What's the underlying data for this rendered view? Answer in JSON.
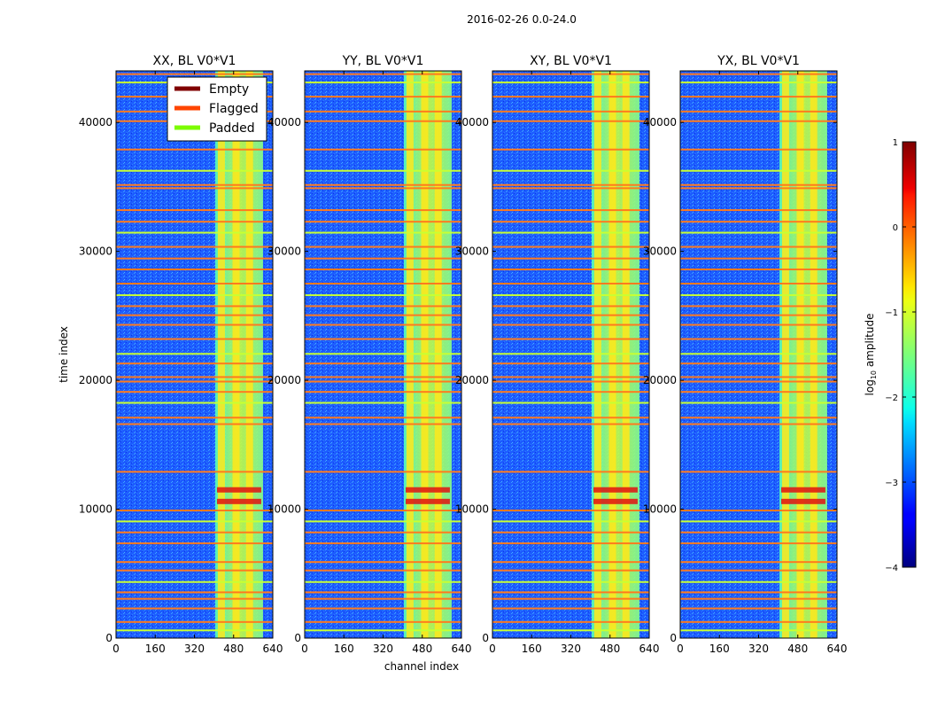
{
  "chart_data": {
    "type": "heatmap",
    "suptitle": "2016-02-26 0.0-24.0",
    "xlabel": "channel index",
    "ylabel": "time index",
    "xlim": [
      0,
      640
    ],
    "ylim": [
      0,
      44000
    ],
    "xticks": [
      0,
      160,
      320,
      480,
      640
    ],
    "yticks": [
      0,
      10000,
      20000,
      30000,
      40000
    ],
    "panels": [
      {
        "title": "XX, BL V0*V1"
      },
      {
        "title": "YY, BL V0*V1"
      },
      {
        "title": "XY, BL V0*V1"
      },
      {
        "title": "YX, BL V0*V1"
      }
    ],
    "active_band_channels": [
      405,
      600
    ],
    "bright_channel_columns": [
      430,
      490,
      545
    ],
    "legend": {
      "location": "upper-right of first panel",
      "entries": [
        {
          "label": "Empty",
          "color": "#800000"
        },
        {
          "label": "Flagged",
          "color": "#ff4500"
        },
        {
          "label": "Padded",
          "color": "#7cfc00"
        }
      ]
    },
    "colorbar": {
      "label": "log",
      "label_sub": "10",
      "label_suffix": " amplitude",
      "range": [
        -4,
        1
      ],
      "ticks": [
        1,
        0,
        -1,
        -2,
        -3,
        -4
      ],
      "tick_labels": [
        "1",
        "0",
        "−1",
        "−2",
        "−3",
        "−4"
      ],
      "colormap": "jet"
    },
    "flagged_rows": [
      600,
      1250,
      2300,
      3050,
      3550,
      4350,
      5250,
      5900,
      7350,
      8200,
      9050,
      9900,
      12900,
      16600,
      17100,
      18250,
      19100,
      19900,
      20250,
      21300,
      22050,
      23200,
      24300,
      25050,
      25750,
      26600,
      27500,
      28600,
      29450,
      30350,
      31450,
      32300,
      33200,
      34900,
      35150,
      36250,
      37900,
      40100,
      40850,
      42000,
      43100,
      43750
    ]
  },
  "colors": {
    "jet_bg": "#1a58ff",
    "flag_line": "#ff7a1e",
    "pad_line": "#c8ff32"
  }
}
